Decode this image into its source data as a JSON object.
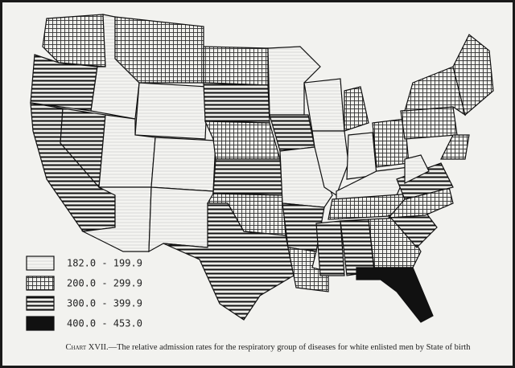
{
  "legend": {
    "items": [
      "182.0 - 199.9",
      "200.0 - 299.9",
      "300.0 - 399.9",
      "400.0 - 453.0"
    ]
  },
  "caption": {
    "label": "Chart XVII.",
    "text": "—The relative admission rates for the respiratory group of diseases for white enlisted men by State of birth"
  }
}
